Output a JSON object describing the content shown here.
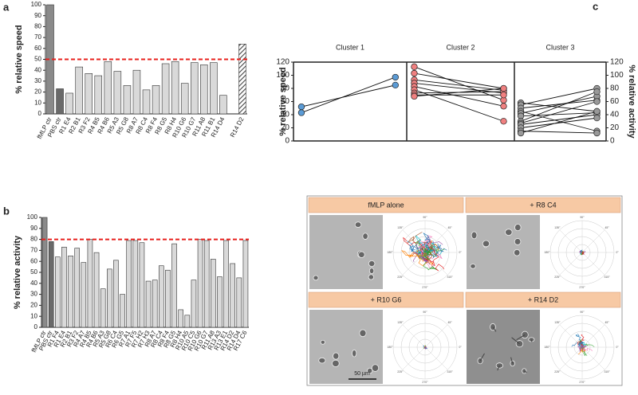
{
  "chart_data": [
    {
      "type": "bar",
      "panel": "a",
      "ylabel": "% relative speed",
      "categories": [
        "fMLP ctr",
        "PBS ctr",
        "R1 E4",
        "R2 B1",
        "R3 F2",
        "R4 B5",
        "R4 B6",
        "R5 A3",
        "R5 G8",
        "R8 A7",
        "R8 C4",
        "R8 F4",
        "R8 G5",
        "R8 H4",
        "R10 G6",
        "R10 G7",
        "R11 A8",
        "R11 B1",
        "R14 D4",
        null,
        "R14 D2"
      ],
      "values": [
        100,
        23,
        19,
        43,
        37,
        35,
        48,
        39,
        26,
        40,
        22,
        26,
        46,
        48,
        28,
        47,
        45,
        47,
        17,
        null,
        64
      ],
      "colors": [
        "#8a8a8a",
        "#6a6a6a",
        "#d9d9d9",
        "#d9d9d9",
        "#d9d9d9",
        "#d9d9d9",
        "#d9d9d9",
        "#d9d9d9",
        "#d9d9d9",
        "#d9d9d9",
        "#d9d9d9",
        "#d9d9d9",
        "#d9d9d9",
        "#d9d9d9",
        "#d9d9d9",
        "#d9d9d9",
        "#d9d9d9",
        "#d9d9d9",
        "#d9d9d9",
        null,
        "#6a6a6a"
      ],
      "ylim": [
        0,
        100
      ],
      "yticks": [
        0,
        10,
        20,
        30,
        40,
        50,
        60,
        70,
        80,
        90,
        100
      ],
      "threshold": 50,
      "threshold_color": "#e8211d"
    },
    {
      "type": "bar",
      "panel": "b",
      "ylabel": "% relative activity",
      "categories": [
        "fMLP ctr",
        "PBS ctr",
        "R1 F4",
        "R1 E4",
        "R2 B1",
        "R3 F2",
        "R4 A7",
        "R4 B5",
        "R4 B6",
        "R5 A3",
        "R5 G8",
        "R6 C4",
        "R6 G5",
        "R7 A1",
        "R7 F5",
        "R7 H2",
        "R7 H3",
        "R8 A7",
        "R8 C4",
        "R8 F4",
        "R8 G5",
        "R8 H4",
        "R10 A5",
        "R10 C5",
        "R10 G6",
        "R10 G7",
        "R11 A8",
        "R13 A3",
        "R13 E1",
        "R14 D2",
        "R14 D4",
        "R17 C6"
      ],
      "values": [
        100,
        78,
        64,
        73,
        65,
        72,
        59,
        80,
        68,
        35,
        53,
        61,
        30,
        79,
        79,
        77,
        42,
        43,
        56,
        52,
        76,
        16,
        11,
        43,
        80,
        79,
        62,
        46,
        79,
        58,
        45,
        79
      ],
      "colors": [
        "#8a8a8a",
        "#6a6a6a",
        "#d9d9d9",
        "#d9d9d9",
        "#d9d9d9",
        "#d9d9d9",
        "#d9d9d9",
        "#d9d9d9",
        "#d9d9d9",
        "#d9d9d9",
        "#d9d9d9",
        "#d9d9d9",
        "#d9d9d9",
        "#d9d9d9",
        "#d9d9d9",
        "#d9d9d9",
        "#d9d9d9",
        "#d9d9d9",
        "#d9d9d9",
        "#d9d9d9",
        "#d9d9d9",
        "#d9d9d9",
        "#d9d9d9",
        "#d9d9d9",
        "#d9d9d9",
        "#d9d9d9",
        "#d9d9d9",
        "#d9d9d9",
        "#d9d9d9",
        "#d9d9d9",
        "#d9d9d9",
        "#d9d9d9"
      ],
      "ylim": [
        0,
        100
      ],
      "yticks": [
        0,
        10,
        20,
        30,
        40,
        50,
        60,
        70,
        80,
        90,
        100
      ],
      "threshold": 80,
      "threshold_color": "#e8211d"
    },
    {
      "type": "paired",
      "panel": "c",
      "ylabel": "% relative speed",
      "y2label": "% relative activity",
      "ylim": [
        0,
        120
      ],
      "yticks": [
        0,
        20,
        40,
        60,
        80,
        100,
        120
      ],
      "y2lim": [
        0,
        120
      ],
      "y2ticks": [
        0,
        20,
        40,
        60,
        80,
        100,
        120
      ],
      "clusters": [
        {
          "name": "Cluster 1",
          "color": "#5b9bd5",
          "speed": [
            52,
            43
          ],
          "activity": [
            85,
            97
          ]
        },
        {
          "name": "Cluster 2",
          "color": "#f08080",
          "speed": [
            113,
            103,
            93,
            88,
            83,
            78,
            73,
            70,
            68
          ],
          "activity": [
            62,
            80,
            77,
            73,
            53,
            30,
            75,
            70,
            80
          ]
        },
        {
          "name": "Cluster 3",
          "color": "#999999",
          "speed": [
            58,
            55,
            50,
            45,
            42,
            38,
            30,
            27,
            25,
            20,
            15,
            12
          ],
          "activity": [
            45,
            80,
            62,
            15,
            68,
            43,
            75,
            60,
            40,
            35,
            12,
            45
          ]
        }
      ]
    }
  ],
  "panel_d": {
    "panel": "d",
    "headers": [
      "fMLP alone",
      "+ R8 C4",
      "+ R10 G6",
      "+ R14 D2"
    ],
    "scale_bar": "50 µm",
    "angles": [
      "90°",
      "45°",
      "0°",
      "315°",
      "270°",
      "225°",
      "180°",
      "135°"
    ]
  }
}
